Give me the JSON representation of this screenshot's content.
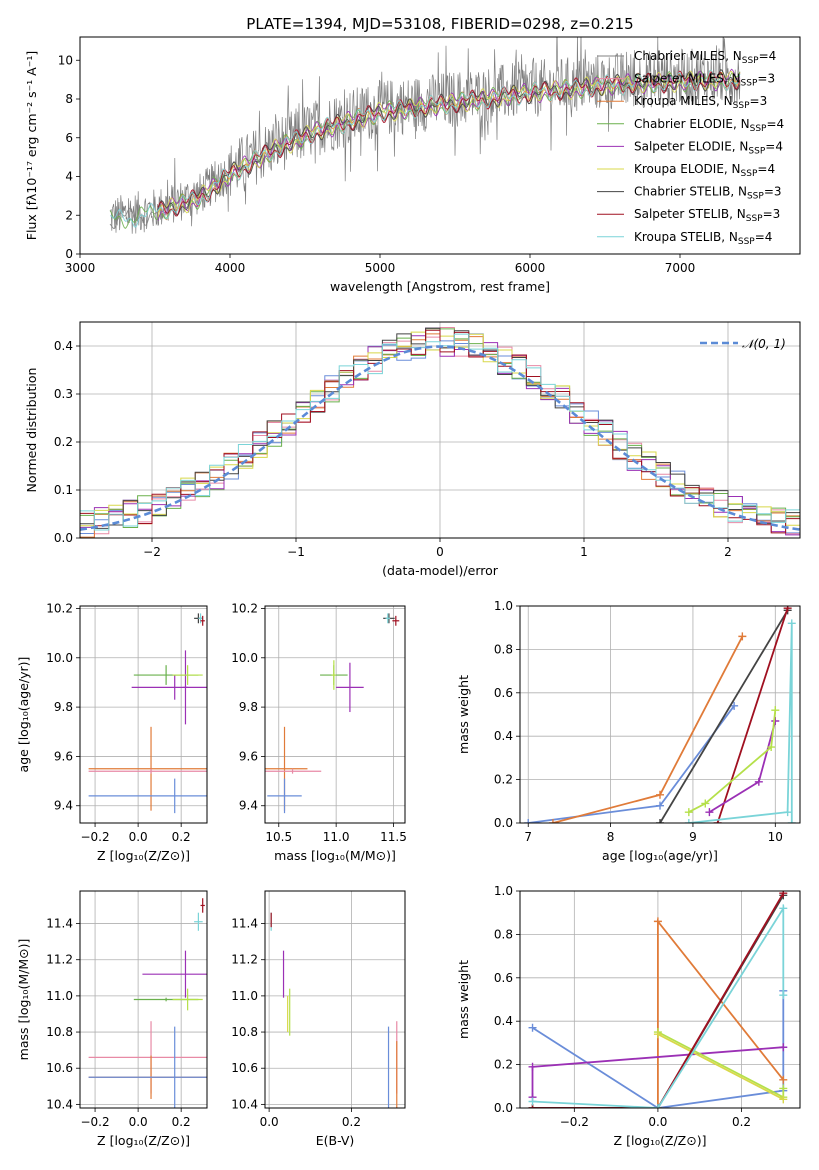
{
  "title": "PLATE=1394, MJD=53108, FIBERID=0298, z=0.215",
  "colors": {
    "grey": "#808080",
    "orange": "#e07b39",
    "cornflower": "#6a8dd9",
    "pink": "#e88aa6",
    "green": "#6ab04c",
    "purple": "#9b30b5",
    "yellow": "#d8d84a",
    "dark": "#444444",
    "red": "#a01020",
    "cyan": "#7ad4d8",
    "lime": "#b5e04a"
  },
  "chart_data": [
    {
      "id": "spectrum",
      "type": "line",
      "xlabel": "wavelength [Angstrom, rest frame]",
      "ylabel": "Flux [fλ10⁻¹⁷ erg cm⁻² s⁻¹ A⁻¹]",
      "xlim": [
        3000,
        7800
      ],
      "ylim": [
        0,
        11.2
      ],
      "xticks": [
        3000,
        4000,
        5000,
        6000,
        7000
      ],
      "yticks": [
        0,
        2,
        4,
        6,
        8,
        10
      ],
      "legend_position": "top-right",
      "continuum": {
        "x": [
          3200,
          3500,
          3800,
          4000,
          4300,
          4600,
          5000,
          5500,
          6000,
          6500,
          7000,
          7400
        ],
        "y": [
          1.9,
          2.3,
          3.1,
          4.3,
          5.6,
          6.6,
          7.5,
          8.0,
          8.5,
          8.9,
          9.1,
          9.2
        ]
      },
      "series": [
        {
          "name": "Chabrier MILES, N_SSP=4",
          "label_main": "Chabrier MILES, N",
          "label_sub": "SSP",
          "label_tail": "=4",
          "color": "#808080"
        },
        {
          "name": "Salpeter MILES, N_SSP=3",
          "label_main": "Salpeter MILES, N",
          "label_sub": "SSP",
          "label_tail": "=3",
          "color": "#e88aa6"
        },
        {
          "name": "Kroupa MILES, N_SSP=3",
          "label_main": "Kroupa MILES, N",
          "label_sub": "SSP",
          "label_tail": "=3",
          "color": "#e07b39"
        },
        {
          "name": "Chabrier ELODIE, N_SSP=4",
          "label_main": "Chabrier ELODIE, N",
          "label_sub": "SSP",
          "label_tail": "=4",
          "color": "#6ab04c"
        },
        {
          "name": "Salpeter ELODIE, N_SSP=4",
          "label_main": "Salpeter ELODIE, N",
          "label_sub": "SSP",
          "label_tail": "=4",
          "color": "#9b30b5"
        },
        {
          "name": "Kroupa ELODIE, N_SSP=4",
          "label_main": "Kroupa ELODIE, N",
          "label_sub": "SSP",
          "label_tail": "=4",
          "color": "#d8d84a"
        },
        {
          "name": "Chabrier STELIB, N_SSP=3",
          "label_main": "Chabrier STELIB, N",
          "label_sub": "SSP",
          "label_tail": "=3",
          "color": "#444444"
        },
        {
          "name": "Salpeter STELIB, N_SSP=3",
          "label_main": "Salpeter STELIB, N",
          "label_sub": "SSP",
          "label_tail": "=3",
          "color": "#a01020"
        },
        {
          "name": "Kroupa STELIB, N_SSP=4",
          "label_main": "Kroupa STELIB, N",
          "label_sub": "SSP",
          "label_tail": "=4",
          "color": "#7ad4d8"
        }
      ]
    },
    {
      "id": "residuals",
      "type": "line",
      "xlabel": "(data-model)/error",
      "ylabel": "Normed distribution",
      "xlim": [
        -2.5,
        2.5
      ],
      "ylim": [
        0,
        0.45
      ],
      "xticks": [
        -2,
        -1,
        0,
        1,
        2
      ],
      "yticks": [
        0.0,
        0.1,
        0.2,
        0.3,
        0.4
      ],
      "xtick_labels": [
        "−2",
        "−1",
        "0",
        "1",
        "2"
      ],
      "ytick_labels": [
        "0.0",
        "0.1",
        "0.2",
        "0.3",
        "0.4"
      ],
      "grid": true,
      "legend_label": "𝒩(0, 1)",
      "legend_position": "top-right",
      "gauss_color": "#5b8bd6",
      "series_colors": [
        "#6a8dd9",
        "#e88aa6",
        "#e07b39",
        "#6ab04c",
        "#9b30b5",
        "#d8d84a",
        "#444444",
        "#a01020",
        "#7ad4d8"
      ]
    },
    {
      "id": "age_vs_Z",
      "type": "scatter",
      "xlabel": "Z [log₁₀(Z/Z⊙)]",
      "ylabel": "age [log₁₀(age/yr)]",
      "xlim": [
        -0.27,
        0.32
      ],
      "ylim": [
        9.33,
        10.21
      ],
      "xticks": [
        -0.2,
        0.0,
        0.2
      ],
      "yticks": [
        9.4,
        9.6,
        9.8,
        10.0,
        10.2
      ],
      "xtick_labels": [
        "−0.2",
        "0.0",
        "0.2"
      ],
      "ytick_labels": [
        "9.4",
        "9.6",
        "9.8",
        "10.0",
        "10.2"
      ],
      "grid": true,
      "points": [
        {
          "x": 0.06,
          "y": 9.55,
          "xerr": 0.29,
          "yerr": 0.17,
          "color": "#e07b39"
        },
        {
          "x": 0.06,
          "y": 9.54,
          "xerr": 0.29,
          "yerr": 0.01,
          "color": "#e88aa6"
        },
        {
          "x": 0.17,
          "y": 9.44,
          "xerr": 0.4,
          "yerr": 0.07,
          "color": "#6a8dd9"
        },
        {
          "x": 0.17,
          "y": 9.88,
          "xerr": 0.2,
          "yerr": 0.05,
          "color": "#9b30b5"
        },
        {
          "x": 0.22,
          "y": 9.88,
          "xerr": 0.01,
          "yerr": 0.15,
          "color": "#9b30b5"
        },
        {
          "x": 0.13,
          "y": 9.93,
          "xerr": 0.15,
          "yerr": 0.04,
          "color": "#6ab04c"
        },
        {
          "x": 0.23,
          "y": 9.93,
          "xerr": 0.07,
          "yerr": 0.04,
          "color": "#b5e04a"
        },
        {
          "x": 0.28,
          "y": 10.16,
          "xerr": 0.02,
          "yerr": 0.02,
          "color": "#444444"
        },
        {
          "x": 0.29,
          "y": 10.16,
          "xerr": 0.01,
          "yerr": 0.02,
          "color": "#7ad4d8"
        },
        {
          "x": 0.3,
          "y": 10.15,
          "xerr": 0.01,
          "yerr": 0.02,
          "color": "#a01020"
        }
      ]
    },
    {
      "id": "age_vs_mass",
      "type": "scatter",
      "xlabel": "mass [log₁₀(M/M⊙)]",
      "ylabel": "",
      "xlim": [
        10.38,
        11.6
      ],
      "ylim": [
        9.33,
        10.21
      ],
      "xticks": [
        10.5,
        11.0,
        11.5
      ],
      "yticks": [
        9.4,
        9.6,
        9.8,
        10.0,
        10.2
      ],
      "xtick_labels": [
        "10.5",
        "11.0",
        "11.5"
      ],
      "ytick_labels": [
        "9.4",
        "9.6",
        "9.8",
        "10.0",
        "10.2"
      ],
      "grid": true,
      "points": [
        {
          "x": 10.55,
          "y": 9.55,
          "xerr": 0.2,
          "yerr": 0.17,
          "color": "#e07b39"
        },
        {
          "x": 10.62,
          "y": 9.54,
          "xerr": 0.25,
          "yerr": 0.01,
          "color": "#e88aa6"
        },
        {
          "x": 10.55,
          "y": 9.44,
          "xerr": 0.15,
          "yerr": 0.07,
          "color": "#6a8dd9"
        },
        {
          "x": 11.12,
          "y": 9.88,
          "xerr": 0.12,
          "yerr": 0.1,
          "color": "#9b30b5"
        },
        {
          "x": 10.98,
          "y": 9.93,
          "xerr": 0.12,
          "yerr": 0.04,
          "color": "#6ab04c"
        },
        {
          "x": 10.98,
          "y": 9.93,
          "xerr": 0.02,
          "yerr": 0.06,
          "color": "#b5e04a"
        },
        {
          "x": 11.46,
          "y": 10.16,
          "xerr": 0.05,
          "yerr": 0.02,
          "color": "#444444"
        },
        {
          "x": 11.45,
          "y": 10.16,
          "xerr": 0.02,
          "yerr": 0.02,
          "color": "#7ad4d8"
        },
        {
          "x": 11.52,
          "y": 10.15,
          "xerr": 0.03,
          "yerr": 0.02,
          "color": "#a01020"
        }
      ]
    },
    {
      "id": "weight_vs_age",
      "type": "line",
      "xlabel": "age [log₁₀(age/yr)]",
      "ylabel": "mass weight",
      "xlim": [
        6.9,
        10.3
      ],
      "ylim": [
        0,
        1
      ],
      "xticks": [
        7,
        8,
        9,
        10
      ],
      "yticks": [
        0.0,
        0.2,
        0.4,
        0.6,
        0.8,
        1.0
      ],
      "xtick_labels": [
        "7",
        "8",
        "9",
        "10"
      ],
      "ytick_labels": [
        "0.0",
        "0.2",
        "0.4",
        "0.6",
        "0.8",
        "1.0"
      ],
      "grid": true,
      "series": [
        {
          "color": "#6a8dd9",
          "x": [
            7.0,
            8.6,
            9.5
          ],
          "y": [
            0.0,
            0.08,
            0.54
          ]
        },
        {
          "color": "#e07b39",
          "x": [
            7.3,
            8.6,
            9.6
          ],
          "y": [
            0.0,
            0.13,
            0.86
          ]
        },
        {
          "color": "#444444",
          "x": [
            8.6,
            10.15
          ],
          "y": [
            0.0,
            0.98
          ]
        },
        {
          "color": "#a01020",
          "x": [
            9.3,
            10.15
          ],
          "y": [
            0.0,
            0.99
          ]
        },
        {
          "color": "#9b30b5",
          "x": [
            9.2,
            9.8,
            10.0
          ],
          "y": [
            0.05,
            0.19,
            0.47
          ]
        },
        {
          "color": "#b5e04a",
          "x": [
            8.95,
            9.15,
            9.95,
            10.0
          ],
          "y": [
            0.05,
            0.09,
            0.35,
            0.52
          ]
        },
        {
          "color": "#7ad4d8",
          "x": [
            8.95,
            10.15,
            10.2,
            10.2
          ],
          "y": [
            0.0,
            0.05,
            0.92,
            0.0
          ]
        }
      ]
    },
    {
      "id": "mass_vs_Z",
      "type": "scatter",
      "xlabel": "Z [log₁₀(Z/Z⊙)]",
      "ylabel": "mass [log₁₀(M/M⊙)]",
      "xlim": [
        -0.27,
        0.32
      ],
      "ylim": [
        10.38,
        11.58
      ],
      "xticks": [
        -0.2,
        0.0,
        0.2
      ],
      "yticks": [
        10.4,
        10.6,
        10.8,
        11.0,
        11.2,
        11.4
      ],
      "xtick_labels": [
        "−0.2",
        "0.0",
        "0.2"
      ],
      "ytick_labels": [
        "10.4",
        "10.6",
        "10.8",
        "11.0",
        "11.2",
        "11.4"
      ],
      "grid": true,
      "points": [
        {
          "x": 0.06,
          "y": 10.66,
          "xerr": 0.29,
          "yerr": 0.2,
          "color": "#e88aa6"
        },
        {
          "x": 0.06,
          "y": 10.55,
          "xerr": 0.29,
          "yerr": 0.12,
          "color": "#e07b39"
        },
        {
          "x": 0.17,
          "y": 10.55,
          "xerr": 0.4,
          "yerr": 0.28,
          "color": "#6a8dd9"
        },
        {
          "x": 0.22,
          "y": 11.12,
          "xerr": 0.2,
          "yerr": 0.13,
          "color": "#9b30b5"
        },
        {
          "x": 0.13,
          "y": 10.98,
          "xerr": 0.15,
          "yerr": 0.01,
          "color": "#6ab04c"
        },
        {
          "x": 0.23,
          "y": 10.98,
          "xerr": 0.07,
          "yerr": 0.06,
          "color": "#b5e04a"
        },
        {
          "x": 0.28,
          "y": 11.41,
          "xerr": 0.02,
          "yerr": 0.05,
          "color": "#7ad4d8"
        },
        {
          "x": 0.3,
          "y": 11.5,
          "xerr": 0.01,
          "yerr": 0.04,
          "color": "#a01020"
        }
      ]
    },
    {
      "id": "mass_vs_EBV",
      "type": "scatter",
      "xlabel": "E(B-V)",
      "ylabel": "",
      "xlim": [
        -0.01,
        0.33
      ],
      "ylim": [
        10.38,
        11.58
      ],
      "xticks": [
        0.0,
        0.2
      ],
      "yticks": [
        10.4,
        10.6,
        10.8,
        11.0,
        11.2,
        11.4
      ],
      "xtick_labels": [
        "0.0",
        "0.2"
      ],
      "ytick_labels": [
        "10.4",
        "10.6",
        "10.8",
        "11.0",
        "11.2",
        "11.4"
      ],
      "grid": true,
      "points": [
        {
          "x": 0.005,
          "y": 11.41,
          "xerr": 0.0,
          "yerr": 0.05,
          "color": "#7ad4d8"
        },
        {
          "x": 0.005,
          "y": 11.42,
          "xerr": 0.0,
          "yerr": 0.04,
          "color": "#a01020"
        },
        {
          "x": 0.035,
          "y": 11.12,
          "xerr": 0.0,
          "yerr": 0.13,
          "color": "#9b30b5"
        },
        {
          "x": 0.05,
          "y": 10.91,
          "xerr": 0.0,
          "yerr": 0.13,
          "color": "#b5e04a"
        },
        {
          "x": 0.045,
          "y": 10.9,
          "xerr": 0.0,
          "yerr": 0.1,
          "color": "#d8d84a"
        },
        {
          "x": 0.29,
          "y": 10.55,
          "xerr": 0.0,
          "yerr": 0.28,
          "color": "#6a8dd9"
        },
        {
          "x": 0.31,
          "y": 10.66,
          "xerr": 0.0,
          "yerr": 0.2,
          "color": "#e88aa6"
        },
        {
          "x": 0.31,
          "y": 10.55,
          "xerr": 0.0,
          "yerr": 0.2,
          "color": "#e07b39"
        }
      ]
    },
    {
      "id": "weight_vs_Z",
      "type": "line",
      "xlabel": "Z [log₁₀(Z/Z⊙)]",
      "ylabel": "mass weight",
      "xlim": [
        -0.33,
        0.34
      ],
      "ylim": [
        0,
        1
      ],
      "xticks": [
        -0.2,
        0.0,
        0.2
      ],
      "yticks": [
        0.0,
        0.2,
        0.4,
        0.6,
        0.8,
        1.0
      ],
      "xtick_labels": [
        "−0.2",
        "0.0",
        "0.2"
      ],
      "ytick_labels": [
        "0.0",
        "0.2",
        "0.4",
        "0.6",
        "0.8",
        "1.0"
      ],
      "grid": true,
      "series": [
        {
          "color": "#6a8dd9",
          "x": [
            -0.3,
            0.0,
            0.3,
            0.3
          ],
          "y": [
            0.37,
            0.0,
            0.08,
            0.54
          ]
        },
        {
          "color": "#e07b39",
          "x": [
            -0.3,
            0.0,
            0.0,
            0.3
          ],
          "y": [
            0.0,
            0.0,
            0.86,
            0.13
          ]
        },
        {
          "color": "#9b30b5",
          "x": [
            -0.3,
            -0.3,
            0.3
          ],
          "y": [
            0.05,
            0.19,
            0.28
          ]
        },
        {
          "color": "#b5e04a",
          "x": [
            0.0,
            0.3,
            0.3
          ],
          "y": [
            0.35,
            0.05,
            0.09
          ]
        },
        {
          "color": "#d8d84a",
          "x": [
            0.0,
            0.3
          ],
          "y": [
            0.34,
            0.04
          ]
        },
        {
          "color": "#444444",
          "x": [
            -0.3,
            0.0,
            0.3
          ],
          "y": [
            0.0,
            0.0,
            0.98
          ]
        },
        {
          "color": "#a01020",
          "x": [
            -0.3,
            0.0,
            0.3
          ],
          "y": [
            0.0,
            0.0,
            0.99
          ]
        },
        {
          "color": "#7ad4d8",
          "x": [
            -0.3,
            0.0,
            0.3,
            0.3
          ],
          "y": [
            0.03,
            0.0,
            0.92,
            0.52
          ]
        }
      ]
    }
  ]
}
